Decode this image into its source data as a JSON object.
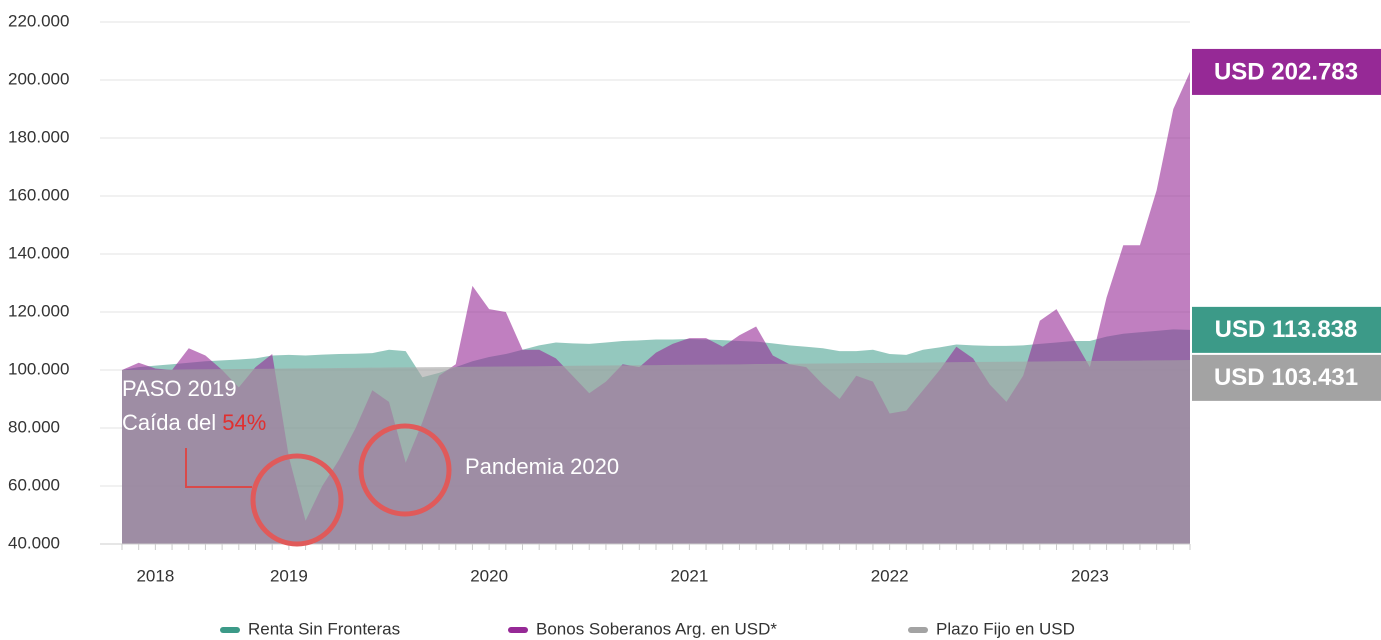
{
  "chart_data": {
    "type": "area",
    "categories": [
      null,
      null,
      "2018",
      null,
      null,
      null,
      null,
      null,
      null,
      null,
      "2019",
      null,
      null,
      null,
      null,
      null,
      null,
      null,
      null,
      null,
      null,
      null,
      "2020",
      null,
      null,
      null,
      null,
      null,
      null,
      null,
      null,
      null,
      null,
      null,
      "2021",
      null,
      null,
      null,
      null,
      null,
      null,
      null,
      null,
      null,
      null,
      null,
      "2022",
      null,
      null,
      null,
      null,
      null,
      null,
      null,
      null,
      null,
      null,
      null,
      "2023",
      null,
      null,
      null,
      null,
      null,
      null
    ],
    "series": [
      {
        "name": "Renta Sin Fronteras",
        "color": "#3c9a88",
        "end_label": "USD 113.838",
        "values": [
          100000,
          101000,
          101500,
          102000,
          102500,
          103000,
          103300,
          103600,
          104000,
          105000,
          105200,
          105000,
          105300,
          105500,
          105600,
          105800,
          107000,
          106500,
          97500,
          99000,
          101000,
          103000,
          104500,
          105500,
          107000,
          108500,
          109500,
          109200,
          109000,
          109500,
          110000,
          110200,
          110500,
          110500,
          110700,
          110500,
          110300,
          110000,
          109800,
          109200,
          108500,
          108000,
          107500,
          106500,
          106500,
          107000,
          105500,
          105200,
          107000,
          107800,
          108800,
          108500,
          108300,
          108300,
          108500,
          109000,
          109500,
          110000,
          110000,
          111500,
          112500,
          113000,
          113500,
          114000,
          113838
        ]
      },
      {
        "name": "Bonos Soberanos Arg. en USD*",
        "color": "#962996",
        "end_label": "USD 202.783",
        "values": [
          100000,
          102500,
          100500,
          100000,
          107500,
          105000,
          100000,
          94000,
          101000,
          105500,
          70000,
          48000,
          60000,
          69000,
          80000,
          93000,
          89000,
          68000,
          82000,
          98000,
          102000,
          129000,
          121000,
          120000,
          107000,
          107000,
          104000,
          98000,
          92000,
          96000,
          102000,
          101000,
          106000,
          109000,
          111000,
          111000,
          108000,
          112000,
          115000,
          105000,
          102000,
          101000,
          95000,
          90000,
          98000,
          96000,
          85000,
          86000,
          93000,
          100000,
          108000,
          104000,
          95000,
          89000,
          98000,
          117000,
          121000,
          111000,
          101000,
          125000,
          143000,
          143000,
          162000,
          190000,
          202783
        ]
      },
      {
        "name": "Plazo Fijo en USD",
        "color": "#a3a3a3",
        "end_label": "USD 103.431",
        "values": [
          100000,
          100050,
          100100,
          100150,
          100200,
          100250,
          100300,
          100350,
          100400,
          100450,
          100500,
          100550,
          100600,
          100700,
          100750,
          100800,
          100850,
          100900,
          100950,
          101000,
          101050,
          101100,
          101150,
          101200,
          101250,
          101300,
          101400,
          101450,
          101500,
          101550,
          101600,
          101650,
          101700,
          101750,
          101800,
          101850,
          101900,
          101950,
          102050,
          102100,
          102150,
          102200,
          102250,
          102300,
          102350,
          102400,
          102450,
          102500,
          102550,
          102650,
          102700,
          102750,
          102800,
          102850,
          102900,
          102950,
          103000,
          103050,
          103100,
          103150,
          103200,
          103250,
          103300,
          103350,
          103431
        ]
      }
    ],
    "ylim": [
      40000,
      220000
    ],
    "yticks": [
      {
        "value": 40000,
        "label": "40.000"
      },
      {
        "value": 60000,
        "label": "60.000"
      },
      {
        "value": 80000,
        "label": "80.000"
      },
      {
        "value": 100000,
        "label": "100.000"
      },
      {
        "value": 120000,
        "label": "120.000"
      },
      {
        "value": 140000,
        "label": "140.000"
      },
      {
        "value": 160000,
        "label": "160.000"
      },
      {
        "value": 180000,
        "label": "180.000"
      },
      {
        "value": 200000,
        "label": "200.000"
      },
      {
        "value": 220000,
        "label": "220.000"
      }
    ],
    "grid": true,
    "legend": "bottom",
    "annotations": {
      "paso_line1": "PASO 2019",
      "paso_line2": "Caída del ",
      "paso_pct": "54%",
      "pandemia": "Pandemia 2020"
    }
  }
}
